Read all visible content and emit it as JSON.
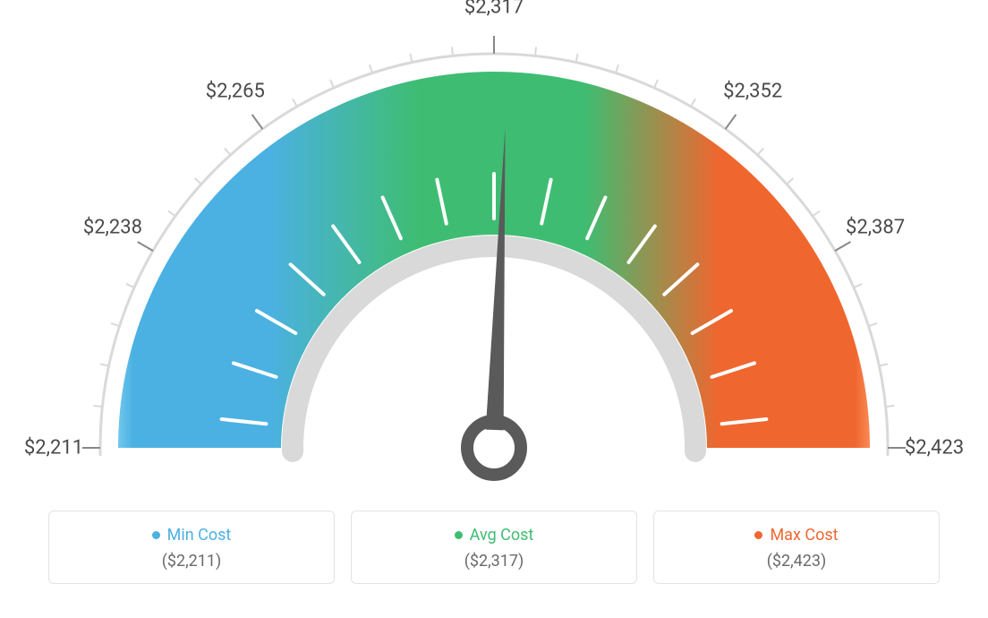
{
  "gauge": {
    "type": "gauge",
    "background_color": "#ffffff",
    "needle_value_deg": 92,
    "min_angle_deg": 0,
    "max_angle_deg": 180,
    "colors": {
      "min": "#4bb1e2",
      "avg": "#3ebd72",
      "max": "#f0662f",
      "outer_ring": "#d9d9d9",
      "inner_ring": "#d9d9d9",
      "tick_major": "#bdbdbd",
      "tick_outer_major": "#888888",
      "tick_white": "#ffffff",
      "needle": "#5a5a5a",
      "label_text": "#4a4a4a"
    },
    "labels": [
      "$2,211",
      "$2,238",
      "$2,265",
      "$2,317",
      "$2,352",
      "$2,387",
      "$2,423"
    ],
    "label_fontsize": 22,
    "label_angles_deg": [
      0,
      30,
      54,
      90,
      126,
      150,
      180
    ],
    "gradient_stops_pct": {
      "blue_start": 2,
      "blue_mid": 20,
      "green_start": 40,
      "green_end": 62,
      "orange_mid": 80,
      "orange_end": 98
    }
  },
  "summary": {
    "cards": [
      {
        "dot_color": "#4bb1e2",
        "title": "Min Cost",
        "value": "($2,211)"
      },
      {
        "dot_color": "#3ebd72",
        "title": "Avg Cost",
        "value": "($2,317)"
      },
      {
        "dot_color": "#f0662f",
        "title": "Max Cost",
        "value": "($2,423)"
      }
    ],
    "title_fontsize": 18,
    "value_fontsize": 18,
    "title_color_mapped_to_dot": true,
    "value_color": "#6a6a6a"
  }
}
